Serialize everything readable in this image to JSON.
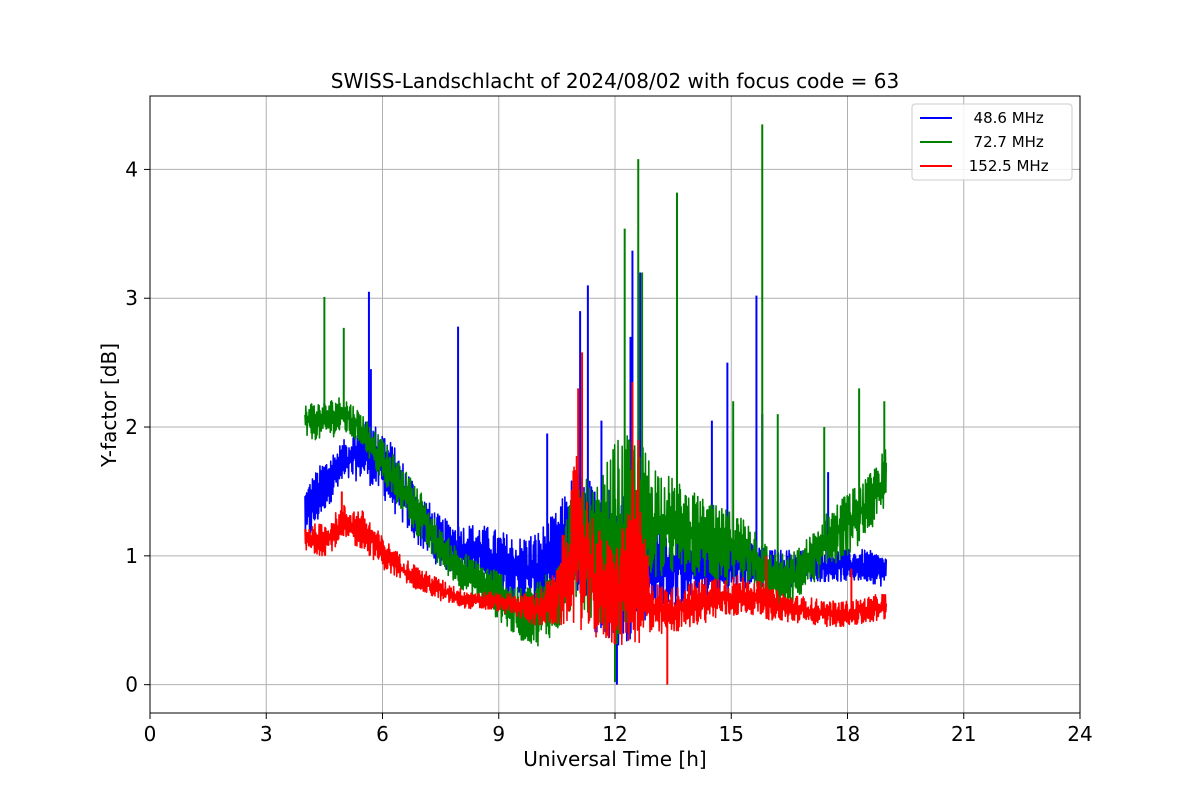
{
  "chart_data": {
    "type": "line",
    "title": "SWISS-Landschlacht of 2024/08/02 with focus code = 63",
    "xlabel": "Universal Time [h]",
    "ylabel": "Y-factor [dB]",
    "xlim": [
      0,
      24
    ],
    "ylim": [
      -0.22,
      4.57
    ],
    "xticks": [
      0,
      3,
      6,
      9,
      12,
      15,
      18,
      21,
      24
    ],
    "xtick_labels": [
      "0",
      "3",
      "6",
      "9",
      "12",
      "15",
      "18",
      "21",
      "24"
    ],
    "yticks": [
      0,
      1,
      2,
      3,
      4
    ],
    "ytick_labels": [
      "0",
      "1",
      "2",
      "3",
      "4"
    ],
    "grid": true,
    "legend_position": "top-right",
    "series": [
      {
        "name": "48.6 MHz",
        "legend_label": "  48.6 MHz",
        "color": "#0000ff",
        "low": [
          [
            4.0,
            1.05
          ],
          [
            4.5,
            1.35
          ],
          [
            5.0,
            1.55
          ],
          [
            5.5,
            1.6
          ],
          [
            6.0,
            1.45
          ],
          [
            6.5,
            1.25
          ],
          [
            7.0,
            1.05
          ],
          [
            7.5,
            0.9
          ],
          [
            8.0,
            0.85
          ],
          [
            8.5,
            0.8
          ],
          [
            9.0,
            0.7
          ],
          [
            9.5,
            0.6
          ],
          [
            10.0,
            0.55
          ],
          [
            10.5,
            0.6
          ],
          [
            11.0,
            0.7
          ],
          [
            11.5,
            0.4
          ],
          [
            12.0,
            0.2
          ],
          [
            12.5,
            0.4
          ],
          [
            13.0,
            0.55
          ],
          [
            13.5,
            0.6
          ],
          [
            14.0,
            0.65
          ],
          [
            14.5,
            0.65
          ],
          [
            15.0,
            0.7
          ],
          [
            15.5,
            0.75
          ],
          [
            16.0,
            0.75
          ],
          [
            16.5,
            0.75
          ],
          [
            17.0,
            0.8
          ],
          [
            17.5,
            0.8
          ],
          [
            18.0,
            0.8
          ],
          [
            18.5,
            0.8
          ],
          [
            19.0,
            0.75
          ]
        ],
        "high": [
          [
            4.0,
            1.55
          ],
          [
            4.5,
            1.75
          ],
          [
            5.0,
            1.9
          ],
          [
            5.5,
            2.05
          ],
          [
            6.0,
            2.0
          ],
          [
            6.5,
            1.75
          ],
          [
            7.0,
            1.5
          ],
          [
            7.5,
            1.3
          ],
          [
            8.0,
            1.25
          ],
          [
            8.5,
            1.25
          ],
          [
            9.0,
            1.2
          ],
          [
            9.5,
            1.15
          ],
          [
            10.0,
            1.2
          ],
          [
            10.5,
            1.35
          ],
          [
            11.0,
            1.7
          ],
          [
            11.5,
            1.55
          ],
          [
            12.0,
            1.6
          ],
          [
            12.5,
            1.5
          ],
          [
            13.0,
            1.3
          ],
          [
            13.5,
            1.25
          ],
          [
            14.0,
            1.2
          ],
          [
            14.5,
            1.2
          ],
          [
            15.0,
            1.15
          ],
          [
            15.5,
            1.1
          ],
          [
            16.0,
            1.05
          ],
          [
            16.5,
            1.05
          ],
          [
            17.0,
            1.05
          ],
          [
            17.5,
            1.05
          ],
          [
            18.0,
            1.05
          ],
          [
            18.5,
            1.05
          ],
          [
            19.0,
            1.0
          ]
        ],
        "spikes": [
          [
            5.65,
            3.05
          ],
          [
            5.7,
            2.45
          ],
          [
            7.95,
            2.78
          ],
          [
            10.25,
            1.95
          ],
          [
            11.1,
            2.9
          ],
          [
            11.3,
            3.1
          ],
          [
            11.65,
            2.05
          ],
          [
            12.05,
            0.0
          ],
          [
            12.4,
            2.7
          ],
          [
            12.45,
            3.37
          ],
          [
            12.65,
            3.2
          ],
          [
            14.5,
            2.05
          ],
          [
            14.9,
            2.5
          ],
          [
            15.65,
            3.02
          ],
          [
            15.8,
            2.1
          ],
          [
            17.5,
            1.65
          ],
          [
            18.0,
            0.85
          ]
        ]
      },
      {
        "name": "72.7 MHz",
        "legend_label": "  72.7 MHz",
        "color": "#008000",
        "low": [
          [
            4.0,
            1.9
          ],
          [
            4.5,
            1.9
          ],
          [
            5.0,
            1.95
          ],
          [
            5.5,
            1.85
          ],
          [
            6.0,
            1.55
          ],
          [
            6.5,
            1.35
          ],
          [
            7.0,
            1.1
          ],
          [
            7.5,
            0.9
          ],
          [
            8.0,
            0.75
          ],
          [
            8.5,
            0.65
          ],
          [
            9.0,
            0.5
          ],
          [
            9.5,
            0.35
          ],
          [
            10.0,
            0.3
          ],
          [
            10.5,
            0.4
          ],
          [
            11.0,
            0.6
          ],
          [
            11.5,
            0.5
          ],
          [
            12.0,
            0.3
          ],
          [
            12.5,
            0.5
          ],
          [
            13.0,
            0.8
          ],
          [
            13.5,
            0.85
          ],
          [
            14.0,
            0.85
          ],
          [
            14.5,
            0.8
          ],
          [
            15.0,
            0.75
          ],
          [
            15.5,
            0.7
          ],
          [
            16.0,
            0.6
          ],
          [
            16.5,
            0.6
          ],
          [
            17.0,
            0.75
          ],
          [
            17.5,
            0.9
          ],
          [
            18.0,
            1.0
          ],
          [
            18.5,
            1.15
          ],
          [
            19.0,
            1.35
          ]
        ],
        "high": [
          [
            4.0,
            2.2
          ],
          [
            4.5,
            2.2
          ],
          [
            5.0,
            2.25
          ],
          [
            5.5,
            2.1
          ],
          [
            6.0,
            1.9
          ],
          [
            6.5,
            1.7
          ],
          [
            7.0,
            1.5
          ],
          [
            7.5,
            1.2
          ],
          [
            8.0,
            1.05
          ],
          [
            8.5,
            0.95
          ],
          [
            9.0,
            0.9
          ],
          [
            9.5,
            0.75
          ],
          [
            10.0,
            0.8
          ],
          [
            10.5,
            1.0
          ],
          [
            11.0,
            1.7
          ],
          [
            11.5,
            1.5
          ],
          [
            12.0,
            1.9
          ],
          [
            12.5,
            1.95
          ],
          [
            13.0,
            1.75
          ],
          [
            13.5,
            1.6
          ],
          [
            14.0,
            1.5
          ],
          [
            14.5,
            1.4
          ],
          [
            15.0,
            1.35
          ],
          [
            15.5,
            1.3
          ],
          [
            16.0,
            1.05
          ],
          [
            16.5,
            1.0
          ],
          [
            17.0,
            1.15
          ],
          [
            17.5,
            1.35
          ],
          [
            18.0,
            1.5
          ],
          [
            18.5,
            1.6
          ],
          [
            19.0,
            1.85
          ]
        ],
        "spikes": [
          [
            4.5,
            3.01
          ],
          [
            5.0,
            2.77
          ],
          [
            12.0,
            0.02
          ],
          [
            12.25,
            3.54
          ],
          [
            12.6,
            4.08
          ],
          [
            12.7,
            3.2
          ],
          [
            13.6,
            3.82
          ],
          [
            15.05,
            2.2
          ],
          [
            15.8,
            4.35
          ],
          [
            16.2,
            2.1
          ],
          [
            17.4,
            2.0
          ],
          [
            18.3,
            2.3
          ],
          [
            18.95,
            2.2
          ]
        ]
      },
      {
        "name": "152.5 MHz",
        "legend_label": " 152.5 MHz",
        "color": "#ff0000",
        "low": [
          [
            4.0,
            1.02
          ],
          [
            4.5,
            1.0
          ],
          [
            5.0,
            1.1
          ],
          [
            5.5,
            1.05
          ],
          [
            6.0,
            0.9
          ],
          [
            6.5,
            0.8
          ],
          [
            7.0,
            0.72
          ],
          [
            7.5,
            0.65
          ],
          [
            8.0,
            0.6
          ],
          [
            8.5,
            0.58
          ],
          [
            9.0,
            0.57
          ],
          [
            9.5,
            0.52
          ],
          [
            10.0,
            0.45
          ],
          [
            10.5,
            0.45
          ],
          [
            11.0,
            0.45
          ],
          [
            11.5,
            0.35
          ],
          [
            12.0,
            0.3
          ],
          [
            12.5,
            0.3
          ],
          [
            13.0,
            0.35
          ],
          [
            13.5,
            0.4
          ],
          [
            14.0,
            0.45
          ],
          [
            14.5,
            0.5
          ],
          [
            15.0,
            0.52
          ],
          [
            15.5,
            0.55
          ],
          [
            16.0,
            0.5
          ],
          [
            16.5,
            0.48
          ],
          [
            17.0,
            0.47
          ],
          [
            17.5,
            0.45
          ],
          [
            18.0,
            0.45
          ],
          [
            18.5,
            0.47
          ],
          [
            19.0,
            0.5
          ]
        ],
        "high": [
          [
            4.0,
            1.25
          ],
          [
            4.5,
            1.25
          ],
          [
            5.0,
            1.4
          ],
          [
            5.5,
            1.35
          ],
          [
            6.0,
            1.15
          ],
          [
            6.5,
            1.0
          ],
          [
            7.0,
            0.9
          ],
          [
            7.5,
            0.82
          ],
          [
            8.0,
            0.75
          ],
          [
            8.5,
            0.72
          ],
          [
            9.0,
            0.72
          ],
          [
            9.5,
            0.7
          ],
          [
            10.0,
            0.72
          ],
          [
            10.5,
            0.9
          ],
          [
            11.0,
            1.8
          ],
          [
            11.5,
            1.25
          ],
          [
            12.0,
            1.05
          ],
          [
            12.5,
            1.6
          ],
          [
            13.0,
            0.8
          ],
          [
            13.5,
            0.75
          ],
          [
            14.0,
            0.8
          ],
          [
            14.5,
            0.85
          ],
          [
            15.0,
            0.85
          ],
          [
            15.5,
            0.85
          ],
          [
            16.0,
            0.75
          ],
          [
            16.5,
            0.7
          ],
          [
            17.0,
            0.68
          ],
          [
            17.5,
            0.65
          ],
          [
            18.0,
            0.65
          ],
          [
            18.5,
            0.68
          ],
          [
            19.0,
            0.72
          ]
        ],
        "spikes": [
          [
            4.95,
            1.5
          ],
          [
            11.05,
            2.3
          ],
          [
            11.15,
            2.58
          ],
          [
            12.45,
            2.35
          ],
          [
            12.6,
            1.9
          ],
          [
            13.35,
            0.0
          ],
          [
            15.9,
            1.0
          ],
          [
            18.1,
            0.9
          ]
        ]
      }
    ]
  }
}
